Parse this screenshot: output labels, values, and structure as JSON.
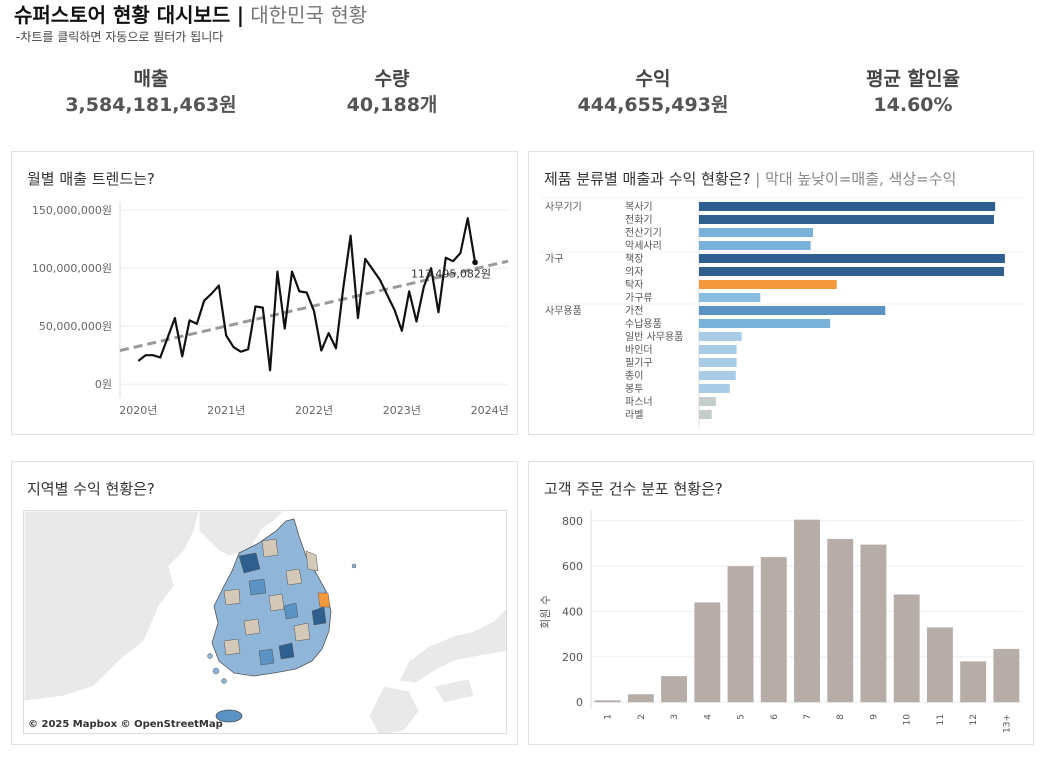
{
  "header": {
    "title": "슈퍼스토어 현황 대시보드",
    "separator": "|",
    "country": "대한민국 현황",
    "subtitle": "-차트를 클릭하면 자동으로 필터가 됩니다"
  },
  "kpis": [
    {
      "label": "매출",
      "value": "3,584,181,463원"
    },
    {
      "label": "수량",
      "value": "40,188개"
    },
    {
      "label": "수익",
      "value": "444,655,493원"
    },
    {
      "label": "평균 할인율",
      "value": "14.60%"
    }
  ],
  "panels": {
    "trend": {
      "title": "월별 매출 트렌드는?"
    },
    "category": {
      "title": "제품 분류별 매출과 수익 현황은?",
      "separator": "|",
      "subtitle": "막대 높낮이=매출, 색상=수익"
    },
    "region": {
      "title": "지역별 수익 현황은?",
      "credit": "© 2025 Mapbox © OpenStreetMap"
    },
    "orders": {
      "title": "고객 주문 건수 분포 현황은?"
    }
  },
  "chart_data": [
    {
      "id": "trend",
      "type": "line",
      "x_tick_labels": [
        "2020년",
        "2021년",
        "2022년",
        "2023년",
        "2024년"
      ],
      "x_tick_positions": [
        0,
        12,
        24,
        36,
        48
      ],
      "y_tick_labels": [
        "0원",
        "50,000,000원",
        "100,000,000원",
        "150,000,000원"
      ],
      "y_tick_values": [
        0,
        50000000,
        100000000,
        150000000
      ],
      "ylim": [
        -5000000,
        157000000
      ],
      "xlim": [
        -2.5,
        50.5
      ],
      "series": [
        {
          "values": [
            20000000,
            25000000,
            25000000,
            23000000,
            40000000,
            57000000,
            24000000,
            55000000,
            52000000,
            72000000,
            78000000,
            85000000,
            42000000,
            32000000,
            28000000,
            30000000,
            67000000,
            66000000,
            12000000,
            97000000,
            48000000,
            97000000,
            80000000,
            79000000,
            63000000,
            29000000,
            44000000,
            31000000,
            83000000,
            128000000,
            57000000,
            108000000,
            99000000,
            90000000,
            77000000,
            64000000,
            46000000,
            80000000,
            54000000,
            84000000,
            100000000,
            62000000,
            109000000,
            106000000,
            113000000,
            143000000,
            105000000
          ],
          "color": "#111111"
        }
      ],
      "trend_line": {
        "start": 29000000,
        "end": 106000000,
        "color": "#999999"
      },
      "annotation": {
        "label": "113,495,082원"
      }
    },
    {
      "id": "category",
      "type": "bar",
      "orientation": "horizontal",
      "groups": [
        {
          "name": "사무기기",
          "items": [
            {
              "name": "복사기",
              "value": 100,
              "color": "#2e5f8f"
            },
            {
              "name": "전화기",
              "value": 99.6,
              "color": "#2e5f8f"
            },
            {
              "name": "전산기기",
              "value": 38.5,
              "color": "#7ab1d8"
            },
            {
              "name": "악세사리",
              "value": 37.7,
              "color": "#7ab1d8"
            }
          ]
        },
        {
          "name": "가구",
          "items": [
            {
              "name": "책장",
              "value": 103.3,
              "color": "#2e5f8f"
            },
            {
              "name": "의자",
              "value": 103,
              "color": "#2e5f8f"
            },
            {
              "name": "탁자",
              "value": 46.5,
              "color": "#f59a3c"
            },
            {
              "name": "가구류",
              "value": 20.7,
              "color": "#8bbde0"
            }
          ]
        },
        {
          "name": "사무용품",
          "items": [
            {
              "name": "가전",
              "value": 62.9,
              "color": "#5a92c4"
            },
            {
              "name": "수납용품",
              "value": 44.3,
              "color": "#7ab1d8"
            },
            {
              "name": "일반 사무용품",
              "value": 14.4,
              "color": "#a8cbe6"
            },
            {
              "name": "바인더",
              "value": 12.7,
              "color": "#a8cbe6"
            },
            {
              "name": "필기구",
              "value": 12.7,
              "color": "#a8cbe6"
            },
            {
              "name": "종이",
              "value": 12.4,
              "color": "#a8cbe6"
            },
            {
              "name": "봉투",
              "value": 10.4,
              "color": "#a8cbe6"
            },
            {
              "name": "파스너",
              "value": 5.7,
              "color": "#c5cccc"
            },
            {
              "name": "라벨",
              "value": 4.3,
              "color": "#c5cccc"
            }
          ]
        }
      ],
      "xlim": [
        0,
        104
      ]
    },
    {
      "id": "orders",
      "type": "bar",
      "categories": [
        "1",
        "2",
        "3",
        "4",
        "5",
        "6",
        "7",
        "8",
        "9",
        "10",
        "11",
        "12",
        "13+"
      ],
      "values": [
        8,
        35,
        115,
        440,
        600,
        640,
        805,
        720,
        695,
        475,
        330,
        180,
        235
      ],
      "ylabel": "회원 수",
      "y_tick_values": [
        0,
        200,
        400,
        600,
        800
      ],
      "ylim": [
        -30,
        830
      ],
      "color": "#b7ada8"
    }
  ],
  "colors": {
    "accent_dark": "#2e5f8f",
    "accent_orange": "#f59a3c",
    "map_land": "#e9e9e9"
  }
}
